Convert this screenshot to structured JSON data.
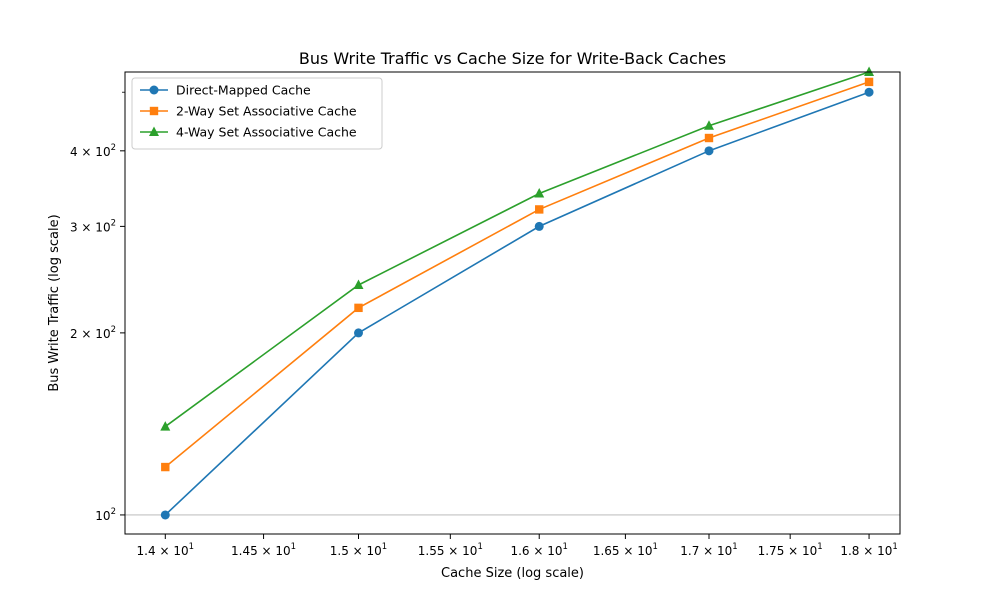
{
  "chart_data": {
    "type": "line",
    "title": "Bus Write Traffic vs Cache Size for Write-Back Caches",
    "xlabel": "Cache Size (log scale)",
    "ylabel": "Bus Write Traffic (log scale)",
    "x_scale": "log",
    "y_scale": "log",
    "x": [
      14,
      15,
      16,
      17,
      18
    ],
    "xlim": [
      13.8,
      18.2
    ],
    "ylim": [
      93,
      540
    ],
    "x_ticks": [
      {
        "value": 14.0,
        "base": "1.4",
        "exp": "1"
      },
      {
        "value": 14.5,
        "base": "1.45",
        "exp": "1"
      },
      {
        "value": 15.0,
        "base": "1.5",
        "exp": "1"
      },
      {
        "value": 15.5,
        "base": "1.55",
        "exp": "1"
      },
      {
        "value": 16.0,
        "base": "1.6",
        "exp": "1"
      },
      {
        "value": 16.5,
        "base": "1.65",
        "exp": "1"
      },
      {
        "value": 17.0,
        "base": "1.7",
        "exp": "1"
      },
      {
        "value": 17.5,
        "base": "1.75",
        "exp": "1"
      },
      {
        "value": 18.0,
        "base": "1.8",
        "exp": "1"
      }
    ],
    "y_ticks": [
      {
        "value": 100,
        "base": "10",
        "exp": "2"
      },
      {
        "value": 200,
        "base": "2 × 10",
        "exp": "2"
      },
      {
        "value": 300,
        "base": "3 × 10",
        "exp": "2"
      },
      {
        "value": 400,
        "base": "4 × 10",
        "exp": "2"
      }
    ],
    "y_minor_ticks": [
      500
    ],
    "series": [
      {
        "name": "Direct-Mapped Cache",
        "values": [
          100,
          200,
          300,
          400,
          500
        ],
        "color": "#1f77b4",
        "marker": "circle"
      },
      {
        "name": "2-Way Set Associative Cache",
        "values": [
          120,
          220,
          320,
          420,
          520
        ],
        "color": "#ff7f0e",
        "marker": "square"
      },
      {
        "name": "4-Way Set Associative Cache",
        "values": [
          140,
          240,
          340,
          440,
          540
        ],
        "color": "#2ca02c",
        "marker": "triangle"
      }
    ],
    "grid": "major y only",
    "legend": "upper left"
  }
}
